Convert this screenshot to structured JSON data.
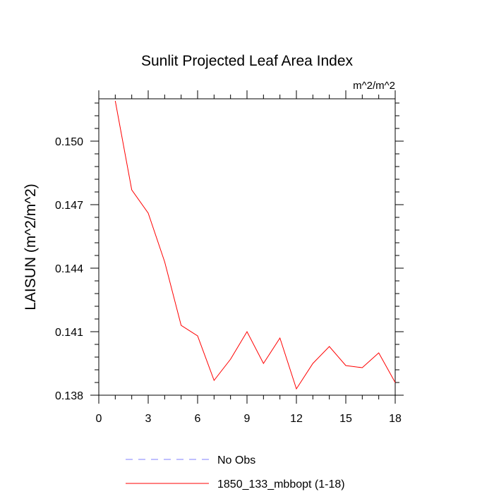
{
  "chart_data": {
    "type": "line",
    "title": "Sunlit Projected Leaf Area Index",
    "units_label": "m^2/m^2",
    "xlabel": "",
    "ylabel": "LAISUN  (m^2/m^2)",
    "xlim": [
      0,
      18
    ],
    "ylim": [
      0.138,
      0.152
    ],
    "x_ticks": [
      0,
      3,
      6,
      9,
      12,
      15,
      18
    ],
    "x_tick_labels": [
      "0",
      "3",
      "6",
      "9",
      "12",
      "15",
      "18"
    ],
    "y_ticks": [
      0.138,
      0.141,
      0.144,
      0.147,
      0.15
    ],
    "y_tick_labels": [
      "0.138",
      "0.141",
      "0.144",
      "0.147",
      "0.150"
    ],
    "grid": false,
    "legend_position": "bottom",
    "series": [
      {
        "name": "No Obs",
        "color": "#8080ff",
        "dashed": true,
        "x": [],
        "y": []
      },
      {
        "name": "1850_133_mbbopt (1-18)",
        "color": "#ff0000",
        "dashed": false,
        "x": [
          1,
          2,
          3,
          4,
          5,
          6,
          7,
          8,
          9,
          10,
          11,
          12,
          13,
          14,
          15,
          16,
          17,
          18
        ],
        "y": [
          0.1519,
          0.1477,
          0.1466,
          0.1443,
          0.1413,
          0.1408,
          0.1387,
          0.1397,
          0.141,
          0.1395,
          0.1407,
          0.1383,
          0.1395,
          0.1403,
          0.1394,
          0.1393,
          0.14,
          0.1386
        ]
      }
    ]
  }
}
